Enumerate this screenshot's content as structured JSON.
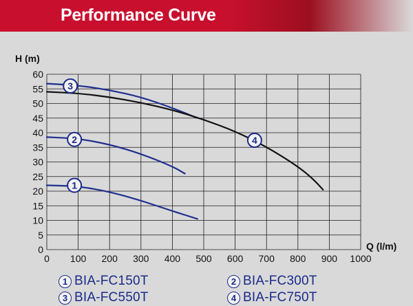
{
  "header": {
    "title": "Performance Curve"
  },
  "chart_data": {
    "type": "line",
    "title": "Performance Curve",
    "xlabel": "Q (l/m)",
    "ylabel": "H (m)",
    "xlim": [
      0,
      1000
    ],
    "ylim": [
      0,
      60
    ],
    "xticks": [
      "0",
      "100",
      "200",
      "300",
      "400",
      "500",
      "600",
      "700",
      "800",
      "900",
      "1000"
    ],
    "yticks": [
      "0",
      "5",
      "10",
      "15",
      "20",
      "25",
      "30",
      "35",
      "40",
      "45",
      "50",
      "55",
      "60"
    ],
    "grid": true,
    "series": [
      {
        "name": "BIA-FC150T",
        "marker": "1",
        "color": "#1f2f8f",
        "x": [
          0,
          100,
          200,
          300,
          400,
          480
        ],
        "y": [
          22,
          21.7,
          19.8,
          16.8,
          13.2,
          10.5
        ]
      },
      {
        "name": "BIA-FC300T",
        "marker": "2",
        "color": "#1f2f8f",
        "x": [
          0,
          100,
          200,
          300,
          400,
          440
        ],
        "y": [
          38.5,
          38,
          36,
          32.8,
          28.5,
          26
        ]
      },
      {
        "name": "BIA-FC550T",
        "marker": "3",
        "color": "#1f2f8f",
        "x": [
          0,
          100,
          200,
          300,
          400,
          480
        ],
        "y": [
          56.8,
          56.2,
          54.6,
          52.2,
          48.5,
          45
        ]
      },
      {
        "name": "BIA-FC750T",
        "marker": "4",
        "color": "#111111",
        "x": [
          0,
          100,
          200,
          300,
          400,
          500,
          600,
          700,
          800,
          850,
          880
        ],
        "y": [
          54,
          53.5,
          52.2,
          50.3,
          47.8,
          44.5,
          40.5,
          35.2,
          28.5,
          24,
          20.5
        ]
      }
    ],
    "markers": [
      {
        "label": "1",
        "x": 88,
        "y": 22
      },
      {
        "label": "2",
        "x": 88,
        "y": 37.7
      },
      {
        "label": "3",
        "x": 75,
        "y": 56
      },
      {
        "label": "4",
        "x": 662,
        "y": 37.4
      }
    ]
  },
  "legend": [
    {
      "num": "1",
      "label": "BIA-FC150T"
    },
    {
      "num": "2",
      "label": "BIA-FC300T"
    },
    {
      "num": "3",
      "label": "BIA-FC550T"
    },
    {
      "num": "4",
      "label": "BIA-FC750T"
    }
  ]
}
